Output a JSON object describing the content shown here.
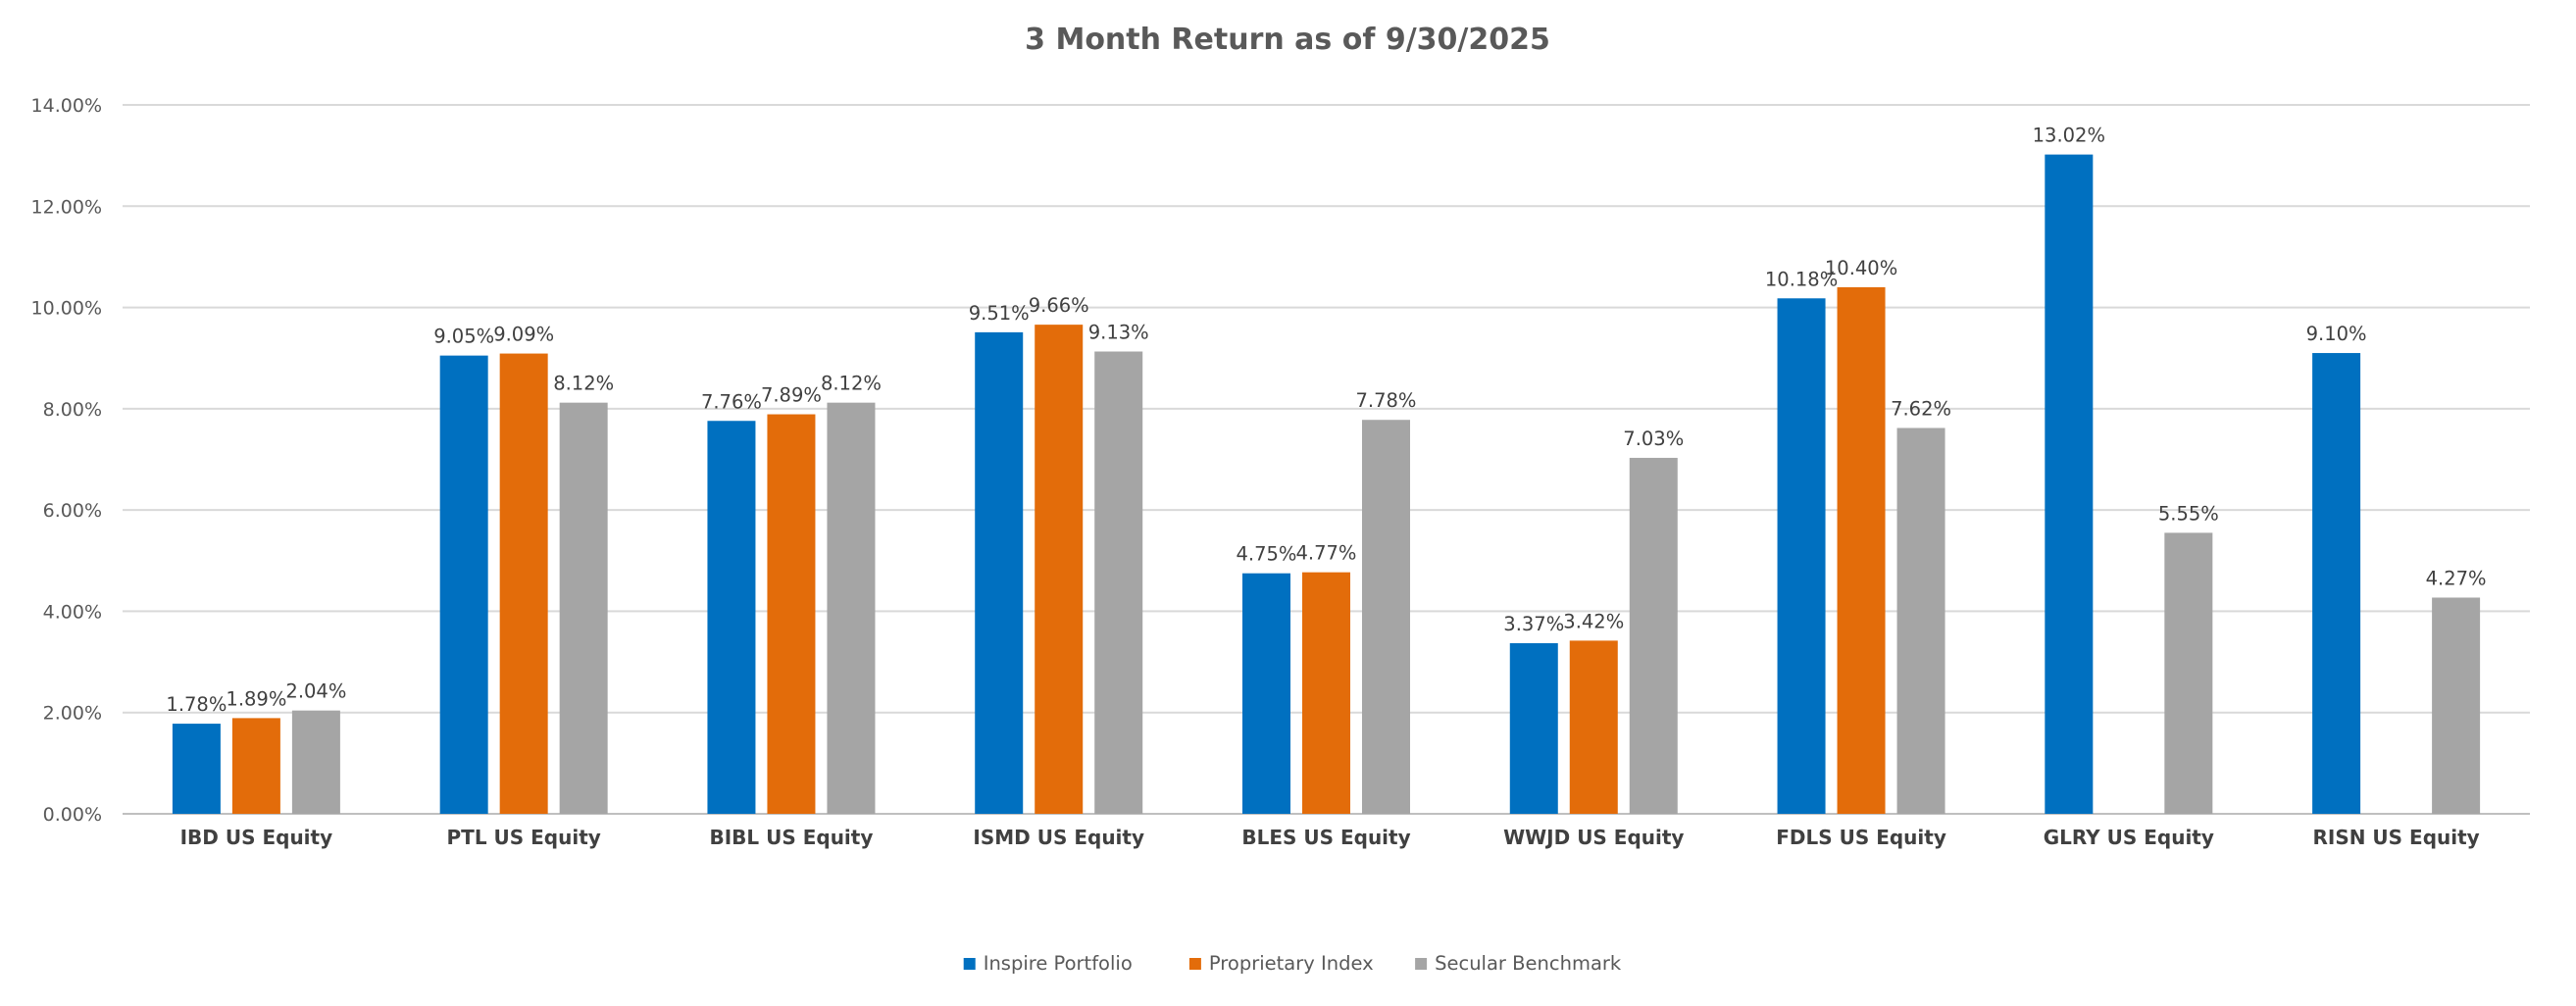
{
  "chart_data": {
    "type": "bar",
    "title": "3 Month Return as of 9/30/2025",
    "xlabel": "",
    "ylabel": "",
    "ylim": [
      0,
      14
    ],
    "yticks": [
      0,
      2,
      4,
      6,
      8,
      10,
      12,
      14
    ],
    "ytick_labels": [
      "0.00%",
      "2.00%",
      "4.00%",
      "6.00%",
      "8.00%",
      "10.00%",
      "12.00%",
      "14.00%"
    ],
    "grid": true,
    "legend_position": "bottom",
    "categories": [
      "IBD US Equity",
      "PTL US Equity",
      "BIBL US Equity",
      "ISMD US Equity",
      "BLES US Equity",
      "WWJD US Equity",
      "FDLS US Equity",
      "GLRY US Equity",
      "RISN US Equity"
    ],
    "series": [
      {
        "name": "Inspire Portfolio",
        "color": "#0070c0",
        "values": [
          1.78,
          9.05,
          7.76,
          9.51,
          4.75,
          3.37,
          10.18,
          13.02,
          9.1
        ],
        "labels": [
          "1.78%",
          "9.05%",
          "7.76%",
          "9.51%",
          "4.75%",
          "3.37%",
          "10.18%",
          "13.02%",
          "9.10%"
        ]
      },
      {
        "name": "Proprietary Index",
        "color": "#e36c0a",
        "values": [
          1.89,
          9.09,
          7.89,
          9.66,
          4.77,
          3.42,
          10.4,
          null,
          null
        ],
        "labels": [
          "1.89%",
          "9.09%",
          "7.89%",
          "9.66%",
          "4.77%",
          "3.42%",
          "10.40%",
          null,
          null
        ]
      },
      {
        "name": "Secular Benchmark",
        "color": "#a5a5a5",
        "values": [
          2.04,
          8.12,
          8.12,
          9.13,
          7.78,
          7.03,
          7.62,
          5.55,
          4.27
        ],
        "labels": [
          "2.04%",
          "8.12%",
          "8.12%",
          "9.13%",
          "7.78%",
          "7.03%",
          "7.62%",
          "5.55%",
          "4.27%"
        ]
      }
    ]
  }
}
